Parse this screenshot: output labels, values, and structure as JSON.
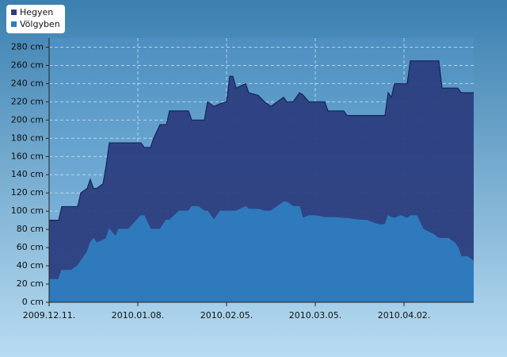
{
  "chart_data": {
    "type": "area",
    "x": [
      "2009-12-11",
      "2009-12-14",
      "2009-12-15",
      "2009-12-18",
      "2009-12-20",
      "2009-12-21",
      "2009-12-23",
      "2009-12-24",
      "2009-12-25",
      "2009-12-26",
      "2009-12-28",
      "2009-12-29",
      "2009-12-30",
      "2010-01-01",
      "2010-01-02",
      "2010-01-04",
      "2010-01-05",
      "2010-01-09",
      "2010-01-10",
      "2010-01-12",
      "2010-01-13",
      "2010-01-15",
      "2010-01-17",
      "2010-01-18",
      "2010-01-21",
      "2010-01-24",
      "2010-01-25",
      "2010-01-27",
      "2010-01-29",
      "2010-01-30",
      "2010-02-01",
      "2010-02-03",
      "2010-02-05",
      "2010-02-06",
      "2010-02-07",
      "2010-02-08",
      "2010-02-11",
      "2010-02-12",
      "2010-02-15",
      "2010-02-17",
      "2010-02-19",
      "2010-02-21",
      "2010-02-23",
      "2010-02-24",
      "2010-02-26",
      "2010-02-28",
      "2010-03-01",
      "2010-03-03",
      "2010-03-05",
      "2010-03-08",
      "2010-03-09",
      "2010-03-11",
      "2010-03-14",
      "2010-03-15",
      "2010-03-19",
      "2010-03-21",
      "2010-03-25",
      "2010-03-27",
      "2010-03-28",
      "2010-03-29",
      "2010-03-30",
      "2010-04-01",
      "2010-04-03",
      "2010-04-04",
      "2010-04-06",
      "2010-04-08",
      "2010-04-11",
      "2010-04-13",
      "2010-04-14",
      "2010-04-16",
      "2010-04-18",
      "2010-04-19",
      "2010-04-20",
      "2010-04-22",
      "2010-04-24"
    ],
    "series": [
      {
        "name": "Hegyen",
        "color": "#2c3e80",
        "line": "#14265a",
        "values": [
          90,
          90,
          105,
          105,
          105,
          120,
          125,
          135,
          125,
          125,
          130,
          150,
          175,
          175,
          175,
          175,
          175,
          175,
          170,
          170,
          180,
          195,
          195,
          210,
          210,
          210,
          200,
          200,
          200,
          220,
          215,
          218,
          220,
          248,
          248,
          235,
          240,
          230,
          227,
          220,
          215,
          220,
          225,
          220,
          220,
          230,
          228,
          220,
          220,
          220,
          210,
          210,
          210,
          205,
          205,
          205,
          205,
          205,
          230,
          225,
          240,
          240,
          240,
          265,
          265,
          265,
          265,
          265,
          235,
          235,
          235,
          235,
          230,
          230,
          230
        ]
      },
      {
        "name": "Völgyben",
        "color": "#2e7dbf",
        "line": "#2e7dbf",
        "values": [
          25,
          25,
          35,
          35,
          40,
          45,
          55,
          65,
          70,
          65,
          68,
          70,
          80,
          72,
          80,
          80,
          80,
          95,
          95,
          80,
          80,
          80,
          90,
          90,
          100,
          100,
          105,
          105,
          100,
          100,
          90,
          100,
          100,
          100,
          100,
          100,
          105,
          102,
          102,
          100,
          100,
          105,
          110,
          110,
          105,
          105,
          92,
          95,
          95,
          93,
          93,
          93,
          92,
          92,
          90,
          90,
          85,
          85,
          95,
          93,
          92,
          95,
          92,
          95,
          95,
          80,
          75,
          70,
          70,
          70,
          65,
          60,
          50,
          50,
          45
        ]
      }
    ],
    "xlim": [
      "2009-12-11",
      "2010-04-24"
    ],
    "xticks": [
      {
        "value": "2009-12-11",
        "label": "2009.12.11."
      },
      {
        "value": "2010-01-08",
        "label": "2010.01.08."
      },
      {
        "value": "2010-02-05",
        "label": "2010.02.05."
      },
      {
        "value": "2010-03-05",
        "label": "2010.03.05."
      },
      {
        "value": "2010-04-02",
        "label": "2010.04.02."
      }
    ],
    "ylim": [
      0,
      290
    ],
    "yticks": [
      {
        "value": 0,
        "label": "0 cm"
      },
      {
        "value": 20,
        "label": "20 cm"
      },
      {
        "value": 40,
        "label": "40 cm"
      },
      {
        "value": 60,
        "label": "60 cm"
      },
      {
        "value": 80,
        "label": "80 cm"
      },
      {
        "value": 100,
        "label": "100 cm"
      },
      {
        "value": 120,
        "label": "120 cm"
      },
      {
        "value": 140,
        "label": "140 cm"
      },
      {
        "value": 160,
        "label": "160 cm"
      },
      {
        "value": 180,
        "label": "180 cm"
      },
      {
        "value": 200,
        "label": "200 cm"
      },
      {
        "value": 220,
        "label": "220 cm"
      },
      {
        "value": 240,
        "label": "240 cm"
      },
      {
        "value": 260,
        "label": "260 cm"
      },
      {
        "value": 280,
        "label": "280 cm"
      }
    ],
    "grid": true,
    "legend": "top-left"
  }
}
